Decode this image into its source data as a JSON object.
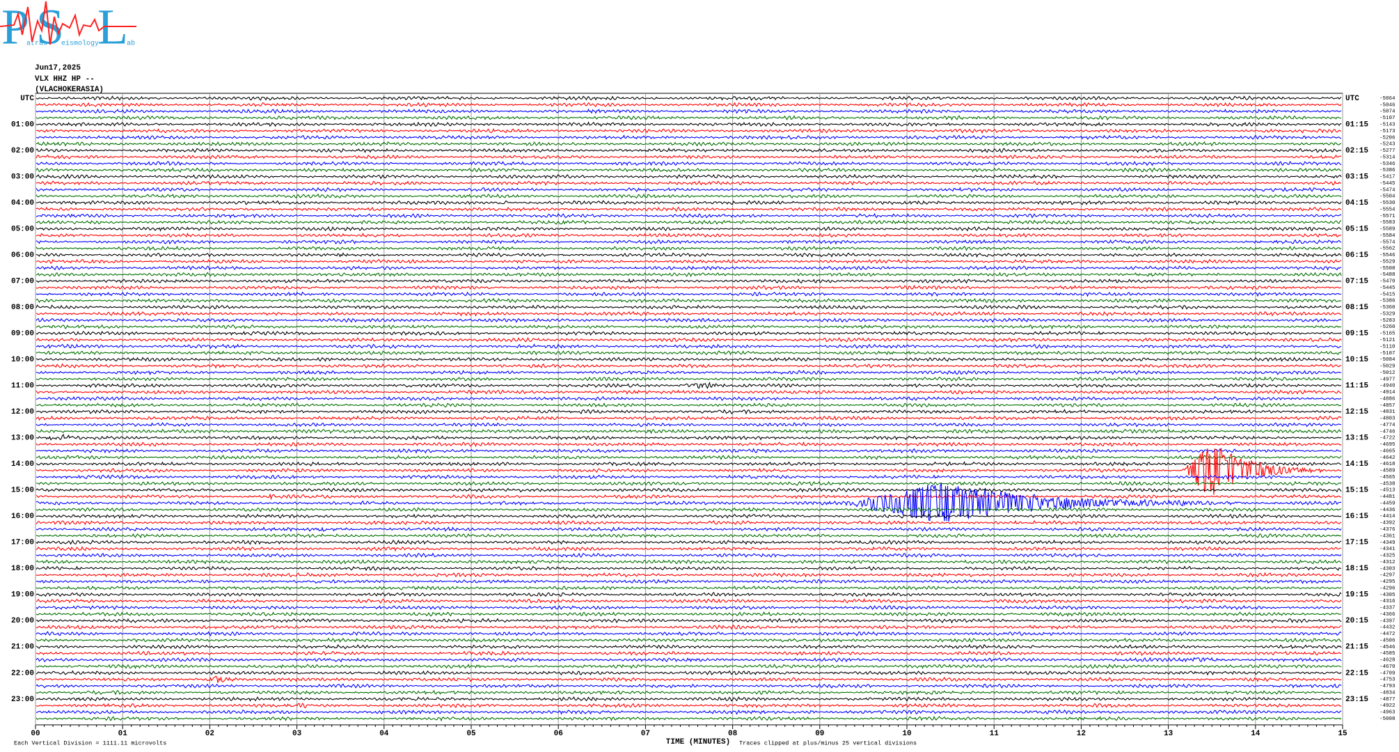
{
  "chart_data": {
    "type": "helicorder",
    "logo": {
      "letters": [
        "P",
        "S",
        "L"
      ],
      "small": [
        "atras",
        "eismology",
        "ab"
      ]
    },
    "date": "Jun17,2025",
    "station": "VLX HHZ HP --",
    "location": "(VLACHOKERASIA)",
    "left_axis_labels": [
      "UTC",
      "01:00",
      "02:00",
      "03:00",
      "04:00",
      "05:00",
      "06:00",
      "07:00",
      "08:00",
      "09:00",
      "10:00",
      "11:00",
      "12:00",
      "13:00",
      "14:00",
      "15:00",
      "16:00",
      "17:00",
      "18:00",
      "19:00",
      "20:00",
      "21:00",
      "22:00",
      "23:00"
    ],
    "right_axis_labels": [
      "UTC",
      "01:15",
      "02:15",
      "03:15",
      "04:15",
      "05:15",
      "06:15",
      "07:15",
      "08:15",
      "09:15",
      "10:15",
      "11:15",
      "12:15",
      "13:15",
      "14:15",
      "15:15",
      "16:15",
      "17:15",
      "18:15",
      "19:15",
      "20:15",
      "21:15",
      "22:15",
      "23:15"
    ],
    "trace_offsets": [
      -5064,
      -5046,
      -5074,
      -5107,
      -5143,
      -5173,
      -5206,
      -5243,
      -5277,
      -5314,
      -5346,
      -5386,
      -5417,
      -5445,
      -5474,
      -5504,
      -5530,
      -5554,
      -5571,
      -5583,
      -5589,
      -5584,
      -5574,
      -5562,
      -5546,
      -5529,
      -5508,
      -5488,
      -5470,
      -5445,
      -5415,
      -5386,
      -5360,
      -5329,
      -5283,
      -5260,
      -5165,
      -5121,
      -5110,
      -5107,
      -5084,
      -5029,
      -5012,
      -4977,
      -4940,
      -4914,
      -4886,
      -4857,
      -4831,
      -4803,
      -4774,
      -4746,
      -4722,
      -4695,
      -4665,
      -4642,
      -4618,
      -4589,
      -4565,
      -4538,
      -4513,
      -4481,
      -4459,
      -4436,
      -4414,
      -4392,
      -4376,
      -4361,
      -4349,
      -4341,
      -4325,
      -4312,
      -4303,
      -4297,
      -4295,
      -4296,
      -4305,
      -4316,
      -4337,
      -4366,
      -4397,
      -4432,
      -4472,
      -4506,
      -4546,
      -4585,
      -4628,
      -4670,
      -4709,
      -4753,
      -4793,
      -4834,
      -4877,
      -4922,
      -4963,
      -5008
    ],
    "trace_colors": [
      "#000000",
      "#ff0000",
      "#0000ff",
      "#007000"
    ],
    "xlim": [
      0,
      15
    ],
    "xticks": [
      {
        "value": 0,
        "label": "00"
      },
      {
        "value": 1,
        "label": "01"
      },
      {
        "value": 2,
        "label": "02"
      },
      {
        "value": 3,
        "label": "03"
      },
      {
        "value": 4,
        "label": "04"
      },
      {
        "value": 5,
        "label": "05"
      },
      {
        "value": 6,
        "label": "06"
      },
      {
        "value": 7,
        "label": "07"
      },
      {
        "value": 8,
        "label": "08"
      },
      {
        "value": 9,
        "label": "09"
      },
      10,
      11,
      12,
      13,
      14,
      15
    ],
    "grid": true,
    "x_label": "TIME (MINUTES)",
    "footer_left": "Each Vertical Division = 1111.11 microvolts",
    "footer_right": "Traces clipped at plus/minus 25 vertical divisions"
  }
}
